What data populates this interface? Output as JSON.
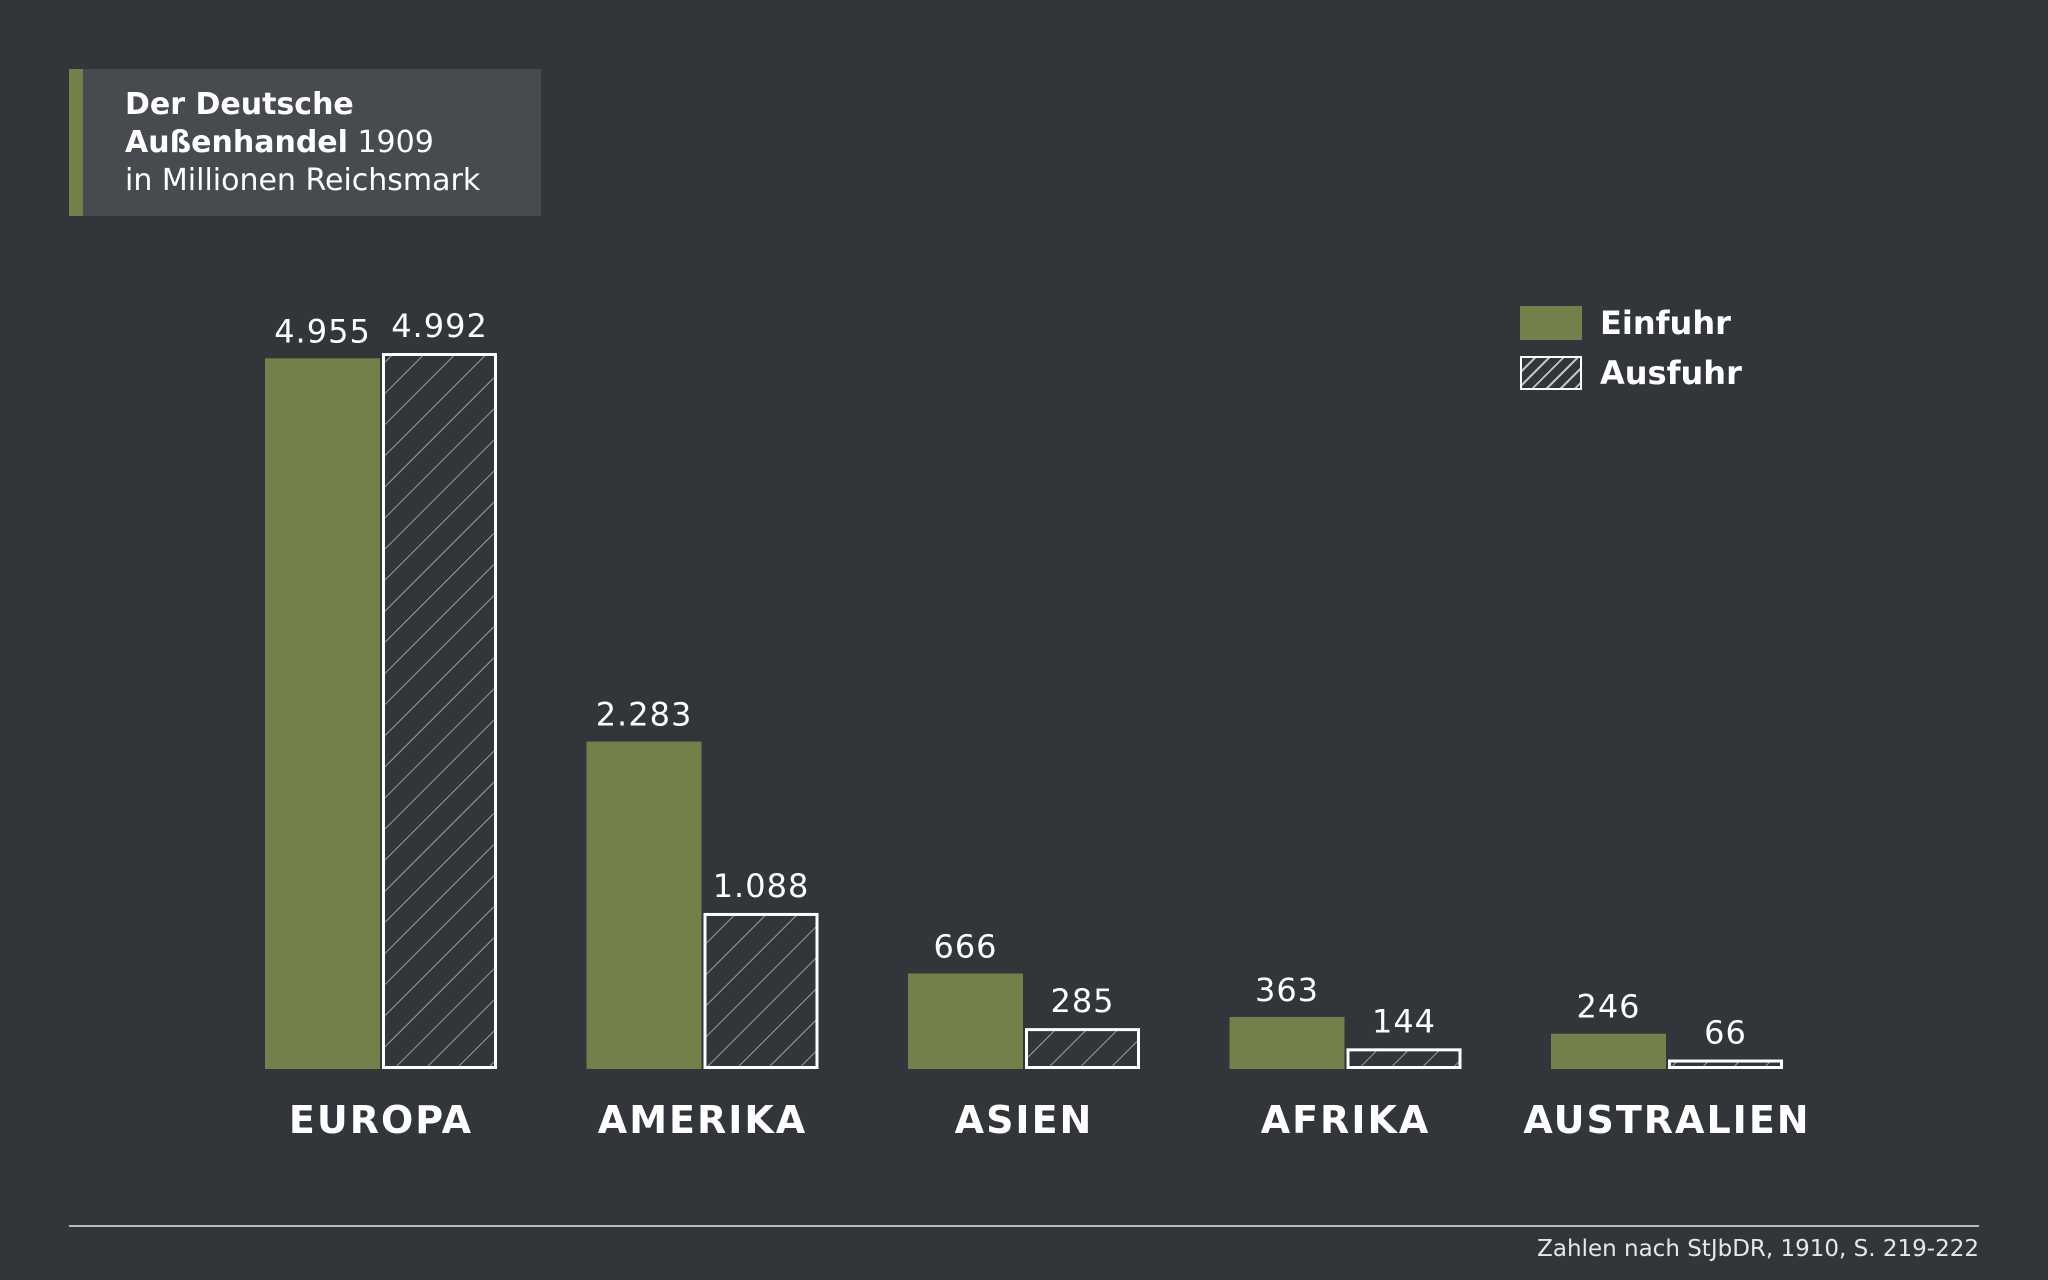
{
  "title": {
    "line1_bold": "Der Deutsche",
    "line2_bold": "Außenhandel",
    "line2_normal": "1909",
    "line3": "in Millionen Reichsmark"
  },
  "legend": {
    "import_label": "Einfuhr",
    "export_label": "Ausfuhr"
  },
  "source": "Zahlen nach StJbDR, 1910, S. 219-222",
  "colors": {
    "background": "#32363a",
    "title_box": "#474b50",
    "import_bar": "#738049",
    "export_outline": "#ffffff",
    "text": "#ffffff"
  },
  "chart_data": {
    "type": "bar",
    "categories": [
      "EUROPA",
      "AMERIKA",
      "ASIEN",
      "AFRIKA",
      "AUSTRALIEN"
    ],
    "series": [
      {
        "name": "Einfuhr",
        "style": "solid",
        "values": [
          4955,
          2283,
          666,
          363,
          246
        ],
        "labels": [
          "4.955",
          "2.283",
          "666",
          "363",
          "246"
        ]
      },
      {
        "name": "Ausfuhr",
        "style": "hatched",
        "values": [
          4992,
          1088,
          285,
          144,
          66
        ],
        "labels": [
          "4.992",
          "1.088",
          "285",
          "144",
          "66"
        ]
      }
    ],
    "title": "Der Deutsche Außenhandel 1909",
    "ylabel": "in Millionen Reichsmark",
    "ylim": [
      0,
      4992
    ],
    "legend_position": "top-right",
    "grid": false
  }
}
